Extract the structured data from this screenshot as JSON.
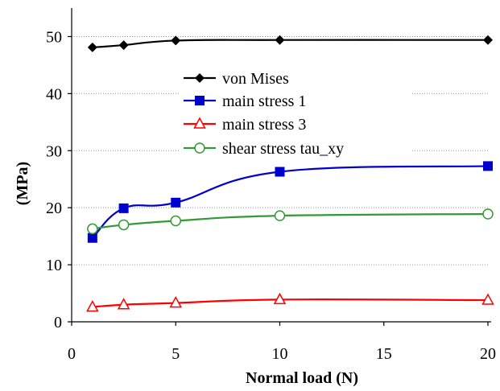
{
  "chart_data": {
    "type": "line",
    "title": "",
    "xlabel": "Normal load (N)",
    "ylabel": "(MPa)",
    "xlim": [
      0,
      20
    ],
    "ylim": [
      0,
      55
    ],
    "x_ticks": [
      "0",
      "5",
      "10",
      "15",
      "20"
    ],
    "y_ticks": [
      "0",
      "10",
      "20",
      "30",
      "40",
      "50"
    ],
    "grid": "horizontal dotted",
    "legend_position": "center",
    "x": [
      1,
      2.5,
      5,
      10,
      20
    ],
    "series": [
      {
        "name": "von Mises",
        "color": "#000000",
        "marker": "diamond-filled",
        "values": [
          48.1,
          48.5,
          49.3,
          49.4,
          49.4
        ]
      },
      {
        "name": "main stress 1",
        "color": "#0000cc",
        "marker": "square-filled",
        "values": [
          14.7,
          19.9,
          20.9,
          26.3,
          27.3
        ]
      },
      {
        "name": "main stress 3",
        "color": "#ff0000",
        "marker": "triangle-open",
        "values": [
          2.6,
          3.0,
          3.3,
          3.9,
          3.8
        ]
      },
      {
        "name": "shear stress tau_xy",
        "color": "#339933",
        "marker": "circle-open",
        "values": [
          16.3,
          17.0,
          17.7,
          18.6,
          18.9
        ]
      }
    ]
  }
}
